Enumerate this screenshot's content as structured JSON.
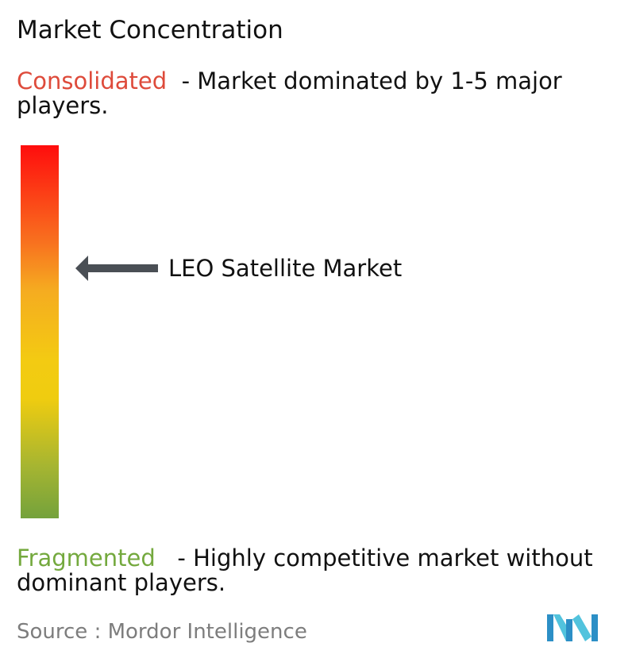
{
  "title": "Market Concentration",
  "consolidated": {
    "keyword": "Consolidated",
    "description": "- Market dominated by 1-5 major players.",
    "color": "#de4b3b"
  },
  "fragmented": {
    "keyword": "Fragmented",
    "description": "- Highly competitive market without dominant players.",
    "color": "#74a93e"
  },
  "chart_data": {
    "type": "gauge",
    "scale": [
      "Consolidated",
      "Fragmented"
    ],
    "gradient_colors": [
      "#ff0d0d",
      "#f8711f",
      "#f3cb12",
      "#a6b531",
      "#74a23c"
    ],
    "marker": {
      "label": "LEO Satellite Market",
      "level_from_consolidated": 0.33
    }
  },
  "source": {
    "label": "Source :",
    "name": "Mordor Intelligence"
  },
  "logo": {
    "icon": "mordor-intelligence-logo",
    "colors": [
      "#2c8fc6",
      "#52c3dd"
    ]
  }
}
